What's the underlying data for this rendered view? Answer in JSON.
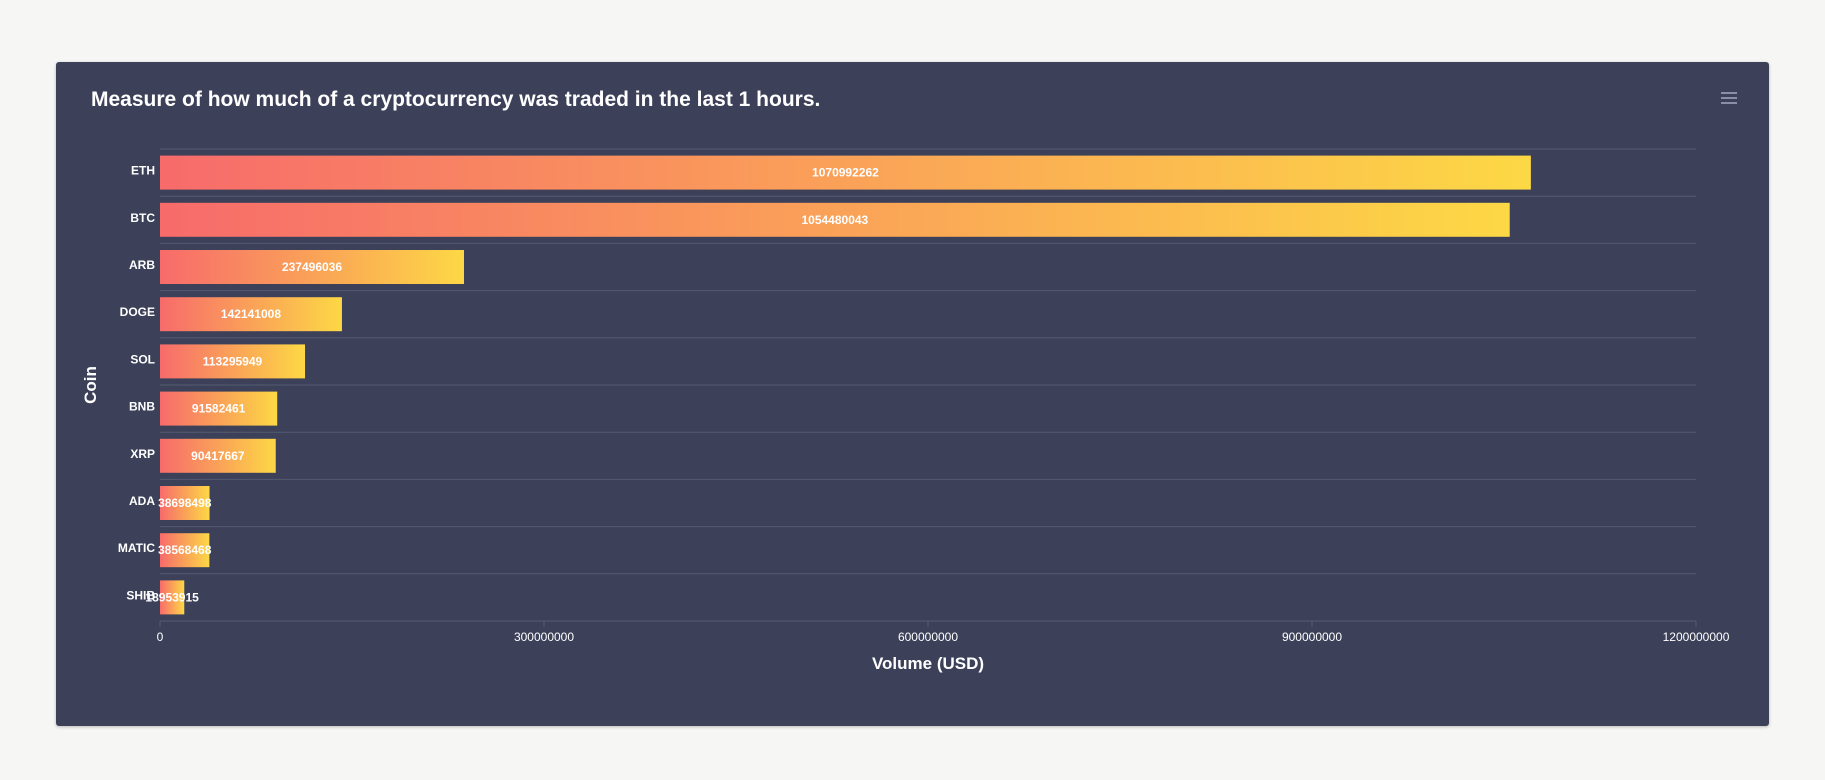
{
  "colors": {
    "background": "#f6f6f5",
    "card": "#3c4159",
    "grid": "#555a70",
    "text": "#ffffff",
    "bar_gradient_start": "#f76b6b",
    "bar_gradient_end": "#fdd845"
  },
  "menu": {
    "icon": "hamburger-menu-icon"
  },
  "chart_data": {
    "type": "bar",
    "orientation": "horizontal",
    "title": "Measure of how much of a cryptocurrency was traded in the last 1 hours.",
    "xlabel": "Volume (USD)",
    "ylabel": "Coin",
    "categories": [
      "ETH",
      "BTC",
      "ARB",
      "DOGE",
      "SOL",
      "BNB",
      "XRP",
      "ADA",
      "MATIC",
      "SHIB"
    ],
    "values": [
      1070992262,
      1054480043,
      237496036,
      142141008,
      113295949,
      91582461,
      90417667,
      38698498,
      38568468,
      18953915
    ],
    "xlim": [
      0,
      1200000000
    ],
    "xticks": [
      "0",
      "300000000",
      "600000000",
      "900000000",
      "1200000000"
    ],
    "data_labels": true,
    "grid": true,
    "legend": "none"
  }
}
